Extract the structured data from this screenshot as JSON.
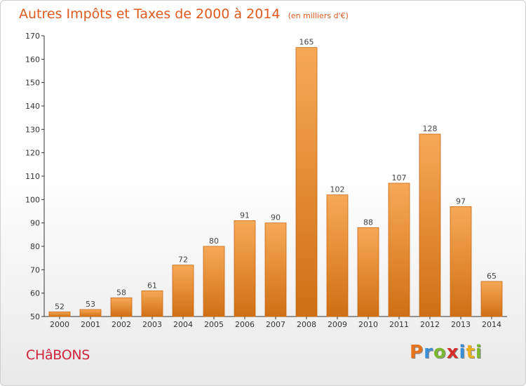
{
  "title": "Autres Impôts et Taxes de 2000 à 2014",
  "subtitle": "(en milliers d'€)",
  "commune": "CHâBONS",
  "logo": {
    "letters": [
      "P",
      "r",
      "o",
      "x",
      "i",
      "t",
      "i"
    ],
    "colors": [
      "#e8731d",
      "#3b8fd6",
      "#7cb82f",
      "#d62d2d",
      "#3b8fd6",
      "#e8b01d",
      "#7cb82f"
    ]
  },
  "colors": {
    "title": "#e05a1e",
    "commune": "#d0223b",
    "bar_top": "#f7a957",
    "bar_bottom": "#d06f13",
    "bar_stroke": "#c86812"
  },
  "chart_data": {
    "type": "bar",
    "title": "Autres Impôts et Taxes de 2000 à 2014",
    "subtitle": "(en milliers d'€)",
    "categories": [
      "2000",
      "2001",
      "2002",
      "2003",
      "2004",
      "2005",
      "2006",
      "2007",
      "2008",
      "2009",
      "2010",
      "2011",
      "2012",
      "2013",
      "2014"
    ],
    "values": [
      52,
      53,
      58,
      61,
      72,
      80,
      91,
      90,
      165,
      102,
      88,
      107,
      128,
      97,
      65
    ],
    "ylim": [
      50,
      170
    ],
    "yticks": [
      50,
      60,
      70,
      80,
      90,
      100,
      110,
      120,
      130,
      140,
      150,
      160,
      170
    ],
    "grid": false,
    "show_value_labels": true
  }
}
